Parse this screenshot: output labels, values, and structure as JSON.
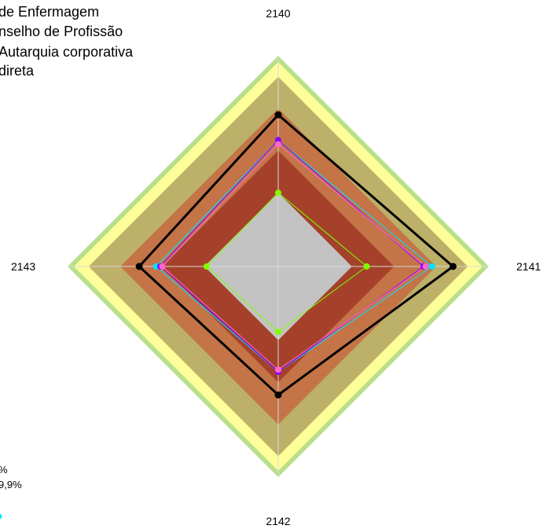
{
  "title_lines": [
    "de Enfermagem",
    "nselho de Profissão",
    "Autarquia corporativa",
    "direta"
  ],
  "legend_fragments": [
    "%",
    "9,9%"
  ],
  "chart_data": {
    "type": "radar",
    "axes": [
      "2140",
      "2141",
      "2142",
      "2143"
    ],
    "rmax": 1.0,
    "bands": [
      {
        "r": 0.35,
        "color": "#c3c3c3"
      },
      {
        "r": 0.55,
        "color": "#a5412a"
      },
      {
        "r": 0.75,
        "color": "#c47447"
      },
      {
        "r": 0.9,
        "color": "#bdb069"
      },
      {
        "r": 0.97,
        "color": "#ffff99"
      },
      {
        "r": 1.0,
        "color": "#b8e08a"
      }
    ],
    "series": [
      {
        "color": "#000000",
        "values": [
          0.72,
          0.83,
          0.61,
          0.66
        ],
        "stroke_width": 3
      },
      {
        "color": "#00e5ff",
        "values": [
          0.6,
          0.73,
          0.5,
          0.58
        ],
        "stroke_width": 1
      },
      {
        "color": "#8a00ff",
        "values": [
          0.6,
          0.69,
          0.5,
          0.56
        ],
        "stroke_width": 1
      },
      {
        "color": "#ff66cc",
        "values": [
          0.58,
          0.7,
          0.49,
          0.55
        ],
        "stroke_width": 1
      },
      {
        "color": "#80ff00",
        "values": [
          0.35,
          0.42,
          0.31,
          0.34
        ],
        "stroke_width": 1
      }
    ]
  }
}
